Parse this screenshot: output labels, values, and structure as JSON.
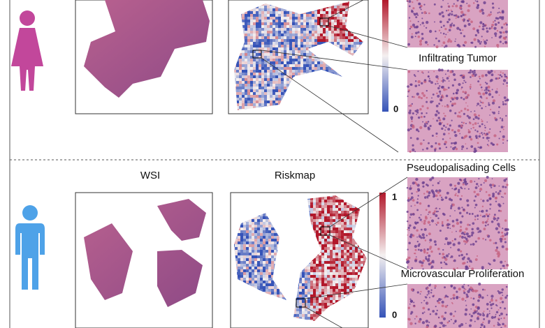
{
  "top_panel": {
    "colorbar_min": "0",
    "patch_labels": [
      "Infiltrating Tumor"
    ]
  },
  "bottom_panel": {
    "wsi_title": "WSI",
    "riskmap_title": "Riskmap",
    "colorbar_max": "1",
    "colorbar_min": "0",
    "patch_labels": [
      "Pseudopalisading Cells",
      "Microvascular Proliferation"
    ]
  }
}
